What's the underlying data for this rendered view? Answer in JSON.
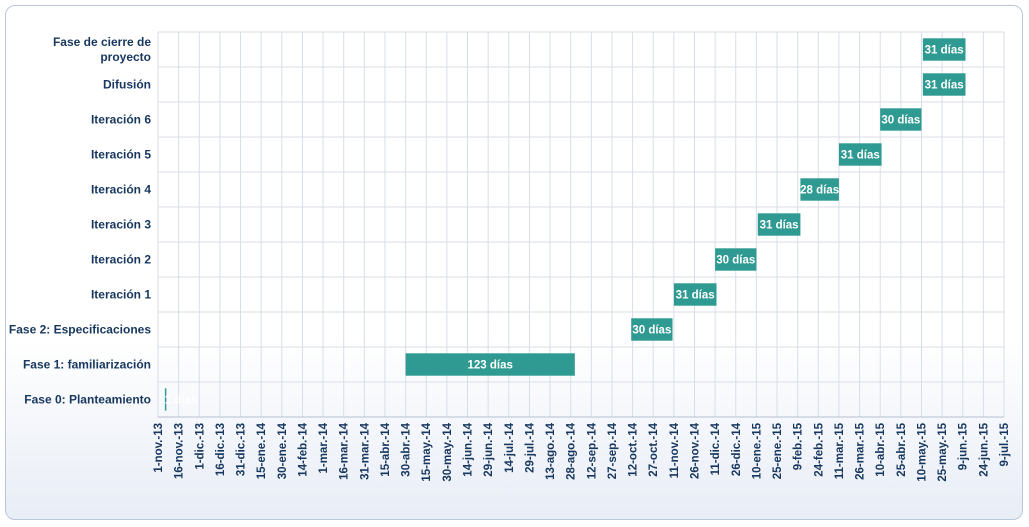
{
  "chart_data": {
    "type": "bar",
    "orientation": "horizontal-gantt",
    "categories": [
      "Fase de cierre de proyecto",
      "Difusión",
      "Iteración 6",
      "Iteración 5",
      "Iteración 4",
      "Iteración 3",
      "Iteración 2",
      "Iteración 1",
      "Fase 2: Especificaciones",
      "Fase 1: familiarización",
      "Fase 0: Planteamiento"
    ],
    "category_label_lines": [
      [
        "Fase de cierre de",
        "proyecto"
      ],
      [
        "Difusión"
      ],
      [
        "Iteración 6"
      ],
      [
        "Iteración 5"
      ],
      [
        "Iteración 4"
      ],
      [
        "Iteración 3"
      ],
      [
        "Iteración 2"
      ],
      [
        "Iteración 1"
      ],
      [
        "Fase 2: Especificaciones"
      ],
      [
        "Fase 1: familiarización"
      ],
      [
        "Fase 0: Planteamiento"
      ]
    ],
    "series": [
      {
        "start": [
          "2015-05-11",
          "2015-05-11",
          "2015-04-10",
          "2015-03-11",
          "2015-02-11",
          "2015-01-11",
          "2014-12-11",
          "2014-11-11",
          "2014-10-11",
          "2014-04-30",
          "2013-11-06"
        ],
        "values": [
          31,
          31,
          30,
          31,
          28,
          31,
          30,
          31,
          30,
          123,
          1
        ],
        "labels": [
          "31 días",
          "31 días",
          "30 días",
          "31 días",
          "28 días",
          "31 días",
          "30 días",
          "31 días",
          "30 días",
          "123 días",
          "1 días"
        ]
      }
    ],
    "x_ticks": [
      "1-nov.-13",
      "16-nov.-13",
      "1-dic.-13",
      "16-dic.-13",
      "31-dic.-13",
      "15-ene.-14",
      "30-ene.-14",
      "14-feb.-14",
      "1-mar.-14",
      "16-mar.-14",
      "31-mar.-14",
      "15-abr.-14",
      "30-abr.-14",
      "15-may.-14",
      "30-may.-14",
      "14-jun.-14",
      "29-jun.-14",
      "14-jul.-14",
      "29-jul.-14",
      "13-ago.-14",
      "28-ago.-14",
      "12-sep.-14",
      "27-sep.-14",
      "12-oct.-14",
      "27-oct.-14",
      "11-nov.-14",
      "26-nov.-14",
      "11-dic.-14",
      "26-dic.-14",
      "10-ene.-15",
      "25-ene.-15",
      "9-feb.-15",
      "24-feb.-15",
      "11-mar.-15",
      "26-mar.-15",
      "10-abr.-15",
      "25-abr.-15",
      "10-may.-15",
      "25-may.-15",
      "9-jun.-15",
      "24-jun.-15",
      "9-jul.-15"
    ],
    "xlim": [
      "2013-11-01",
      "2015-07-09"
    ],
    "x_tick_interval_days": 15,
    "grid": true,
    "legend": "none",
    "colors": {
      "bar": "#2e9a91",
      "grid": "#d8dee8",
      "text": "#17375e"
    }
  }
}
